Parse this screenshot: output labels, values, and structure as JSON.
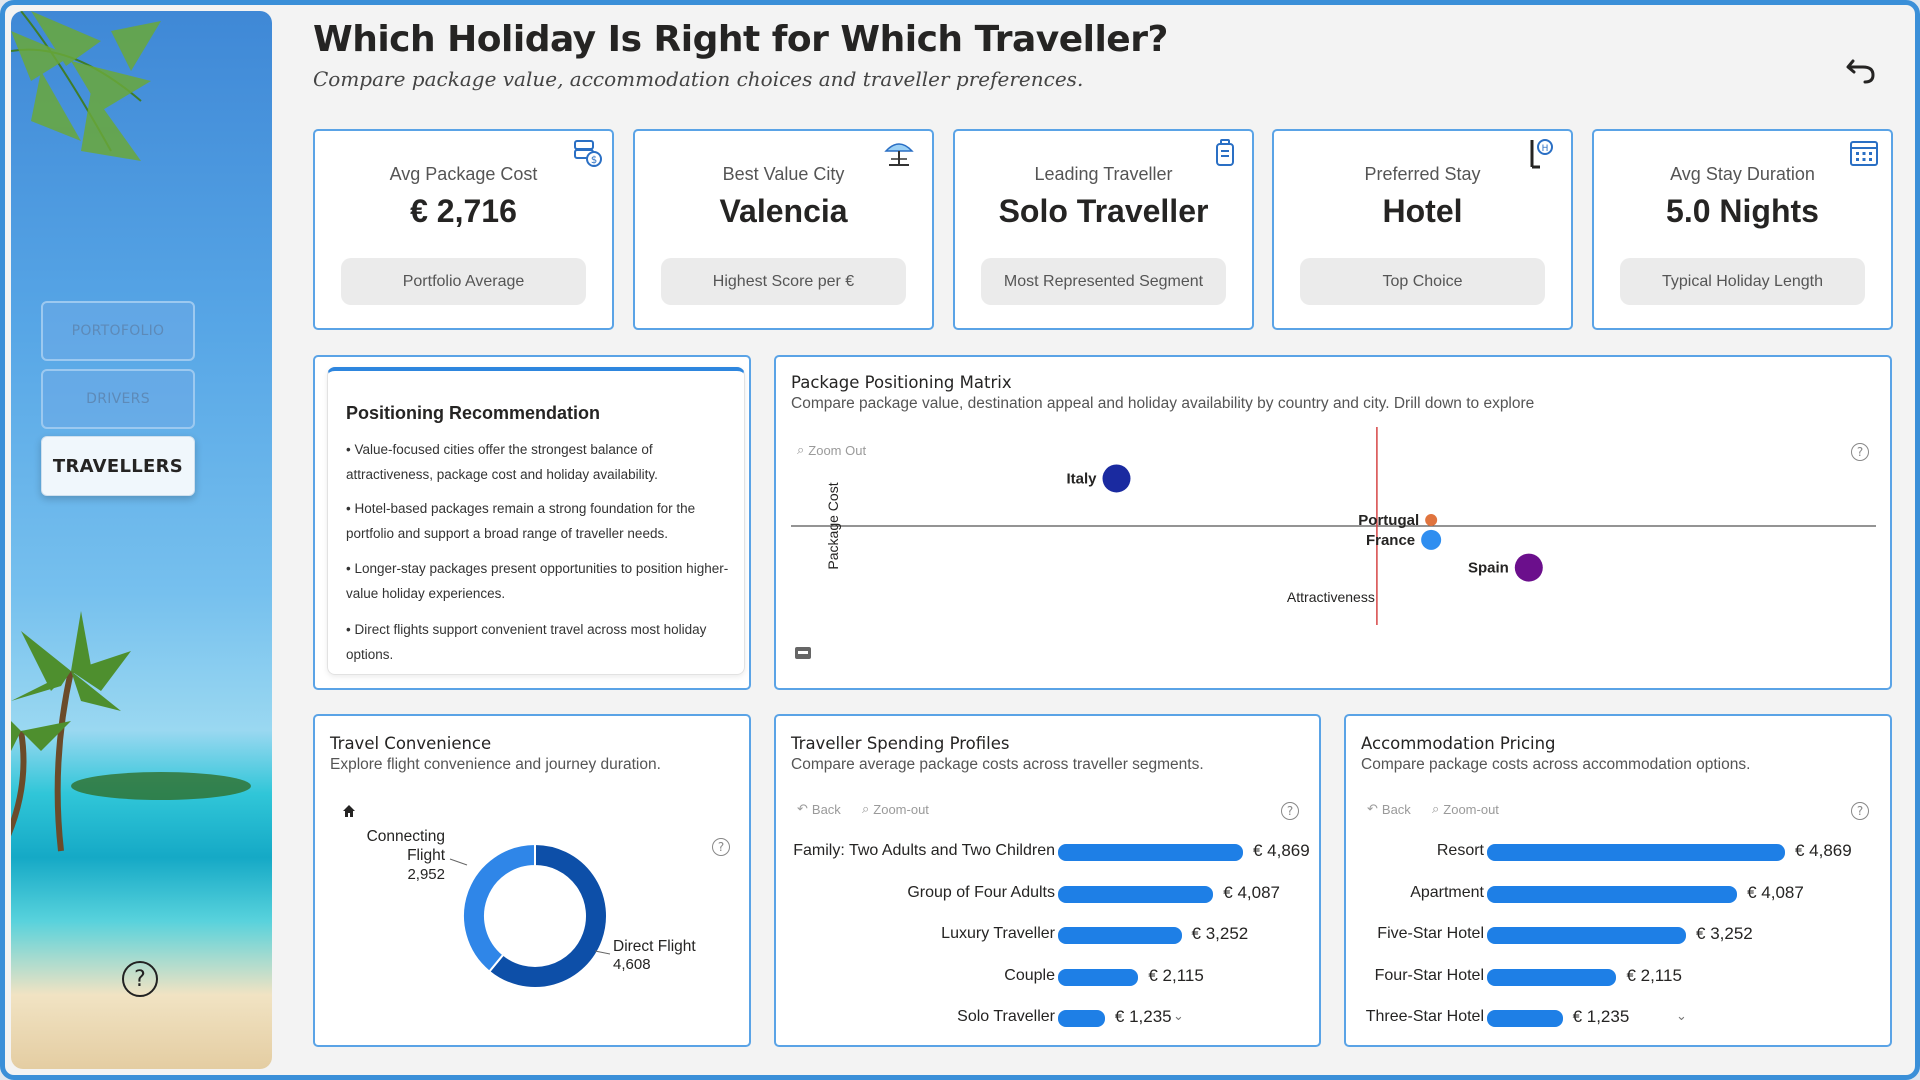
{
  "header": {
    "title": "Which Holiday Is Right for Which Traveller?",
    "subtitle": "Compare package value, accommodation choices and traveller preferences."
  },
  "nav": {
    "items": [
      {
        "label": "PORTOFOLIO",
        "active": false
      },
      {
        "label": "DRIVERS",
        "active": false
      },
      {
        "label": "TRAVELLERS",
        "active": true
      }
    ],
    "help": "?"
  },
  "kpis": [
    {
      "label": "Avg Package Cost",
      "value": "€ 2,716",
      "note": "Portfolio Average",
      "icon": "money-stack-icon"
    },
    {
      "label": "Best Value City",
      "value": "Valencia",
      "note": "Highest Score per €",
      "icon": "beach-umbrella-icon"
    },
    {
      "label": "Leading Traveller",
      "value": "Solo Traveller",
      "note": "Most Represented Segment",
      "icon": "luggage-icon"
    },
    {
      "label": "Preferred Stay",
      "value": "Hotel",
      "note": "Top Choice",
      "icon": "hotel-sign-icon"
    },
    {
      "label": "Avg Stay Duration",
      "value": "5.0 Nights",
      "note": "Typical Holiday Length",
      "icon": "calendar-icon"
    }
  ],
  "recommendation": {
    "title": "Positioning Recommendation",
    "bullets": [
      "• Value-focused cities offer the strongest balance of attractiveness, package cost and holiday availability.",
      "• Hotel-based packages remain a strong foundation for the portfolio and support a broad range of traveller needs.",
      "• Longer-stay packages present opportunities to position higher-value holiday experiences.",
      "• Direct flights support convenient travel across most holiday options."
    ]
  },
  "matrix": {
    "title": "Package Positioning Matrix",
    "subtitle": "Compare package value, destination appeal and holiday availability by country and city. Drill down to explore",
    "zoom_label": "Zoom Out",
    "xlabel": "Attractiveness",
    "ylabel": "Package Cost",
    "colors": {
      "Italy": "#1a2aa0",
      "Portugal": "#e0743e",
      "France": "#2f8ef0",
      "Spain": "#6b0f8c",
      "ref_line": "#d64545"
    }
  },
  "convenience": {
    "title": "Travel Convenience",
    "subtitle": "Explore flight convenience and journey duration."
  },
  "spending": {
    "title": "Traveller Spending Profiles",
    "subtitle": "Compare average package costs across traveller segments.",
    "back": "Back",
    "zoom": "Zoom-out"
  },
  "accommodation": {
    "title": "Accommodation Pricing",
    "subtitle": "Compare package costs across accommodation options.",
    "back": "Back",
    "zoom": "Zoom-out"
  },
  "chart_data": [
    {
      "type": "scatter",
      "title": "Package Positioning Matrix",
      "xlabel": "Attractiveness",
      "ylabel": "Package Cost",
      "points": [
        {
          "label": "Italy",
          "x": 0.3,
          "y": 0.48,
          "color": "#1a2aa0"
        },
        {
          "label": "Portugal",
          "x": 0.59,
          "y": 0.06,
          "color": "#e0743e"
        },
        {
          "label": "France",
          "x": 0.59,
          "y": -0.14,
          "color": "#2f8ef0"
        },
        {
          "label": "Spain",
          "x": 0.68,
          "y": -0.42,
          "color": "#6b0f8c"
        }
      ],
      "xlim": [
        0,
        1
      ],
      "ylim": [
        -1,
        1
      ],
      "ref_x": 0.54,
      "ref_y": 0
    },
    {
      "type": "pie",
      "title": "Travel Convenience",
      "donut": true,
      "slices": [
        {
          "label": "Direct Flight",
          "value": 4608,
          "display": "4,608",
          "color": "#0d4fa8"
        },
        {
          "label": "Connecting Flight",
          "value": 2952,
          "display": "2,952",
          "color": "#2f86e8"
        }
      ]
    },
    {
      "type": "bar",
      "orientation": "horizontal",
      "title": "Traveller Spending Profiles",
      "categories": [
        "Family: Two Adults and Two Children",
        "Group of Four Adults",
        "Luxury Traveller",
        "Couple",
        "Solo Traveller"
      ],
      "values": [
        4869,
        4087,
        3252,
        2115,
        1235
      ],
      "labels": [
        "€ 4,869",
        "€ 4,087",
        "€ 3,252",
        "€ 2,115",
        "€ 1,235"
      ],
      "color": "#1e7fe6"
    },
    {
      "type": "bar",
      "orientation": "horizontal",
      "title": "Accommodation Pricing",
      "categories": [
        "Resort",
        "Apartment",
        "Five-Star Hotel",
        "Four-Star Hotel",
        "Three-Star Hotel"
      ],
      "values": [
        4869,
        4087,
        3252,
        2115,
        1235
      ],
      "labels": [
        "€ 4,869",
        "€ 4,087",
        "€ 3,252",
        "€ 2,115",
        "€ 1,235"
      ],
      "color": "#1e7fe6"
    }
  ]
}
